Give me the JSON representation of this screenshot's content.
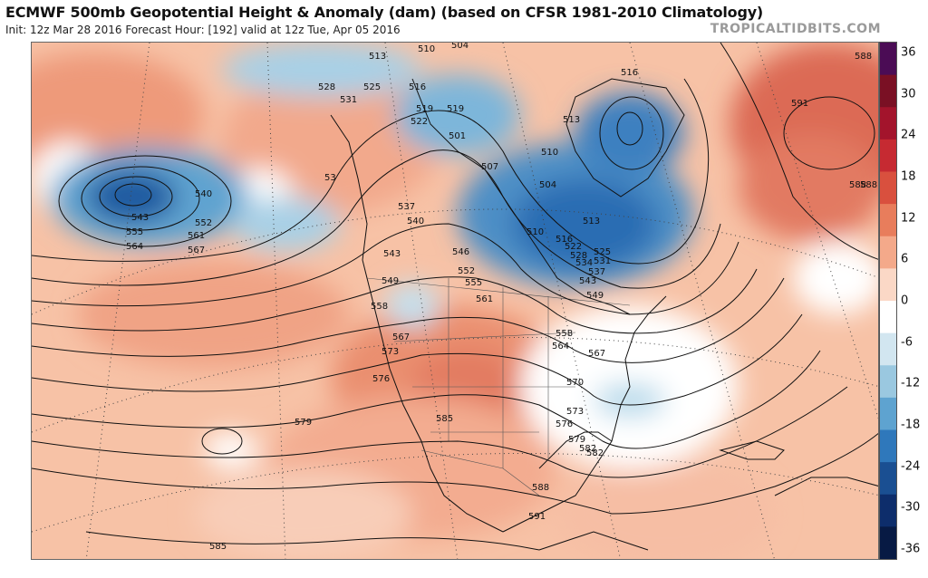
{
  "header": {
    "title": "ECMWF 500mb Geopotential Height & Anomaly (dam) (based on CFSR 1981-2010 Climatology)",
    "subtitle": "Init: 12z Mar 28 2016   Forecast Hour: [192]   valid at 12z Tue, Apr 05 2016",
    "brand": "TROPICALTIDBITS.COM"
  },
  "colorbar": {
    "ticks": [
      "36",
      "30",
      "24",
      "18",
      "12",
      "6",
      "0",
      "-6",
      "-12",
      "-18",
      "-24",
      "-30",
      "-36"
    ],
    "colors": [
      "#4b0c55",
      "#7a1024",
      "#a3142c",
      "#c62a32",
      "#d9503e",
      "#e87d5c",
      "#f4a98a",
      "#fbd8c6",
      "#ffffff",
      "#d2e6f0",
      "#9ac8e0",
      "#5ea3d0",
      "#2f78bb",
      "#1a4f92",
      "#0d2d6b",
      "#071a44"
    ]
  },
  "map": {
    "contour_labels": [
      "513",
      "510",
      "504",
      "516",
      "528",
      "531",
      "525",
      "516",
      "519",
      "522",
      "519",
      "513",
      "540",
      "543",
      "555",
      "564",
      "552",
      "561",
      "567",
      "537",
      "540",
      "543",
      "546",
      "552",
      "555",
      "549",
      "558",
      "561",
      "567",
      "573",
      "576",
      "579",
      "585",
      "570",
      "573",
      "576",
      "579",
      "582",
      "588",
      "591",
      "588",
      "582",
      "585",
      "591",
      "588",
      "501",
      "507",
      "510",
      "504",
      "510",
      "516",
      "522",
      "528",
      "534",
      "513",
      "525",
      "531",
      "537",
      "543",
      "549",
      "558",
      "564",
      "567",
      "53",
      "588"
    ]
  }
}
